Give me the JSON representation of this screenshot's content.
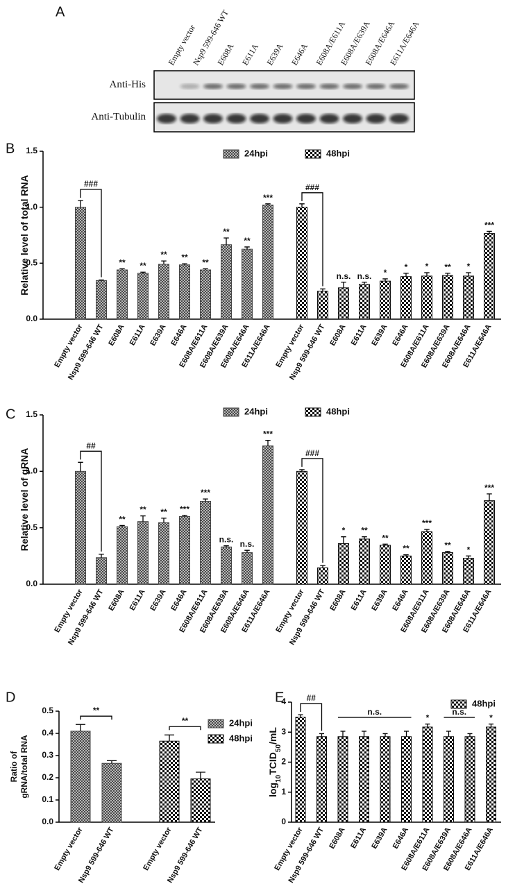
{
  "blot": {
    "panel": "A",
    "lanes": [
      "Empty vector",
      "Nsp9 599-646 WT",
      "E608A",
      "E611A",
      "E639A",
      "E646A",
      "E608A/E611A",
      "E608A/E639A",
      "E608A/E646A",
      "E611A/E646A"
    ],
    "rows": [
      "Anti-His",
      "Anti-Tubulin"
    ]
  },
  "chart_data": [
    {
      "type": "bar",
      "panel": "B",
      "ylabel": "Relative level of total RNA",
      "categories": [
        "Empty vector",
        "Nsp9 599-646 WT",
        "E608A",
        "E611A",
        "E639A",
        "E646A",
        "E608A/E611A",
        "E608A/E639A",
        "E608A/E646A",
        "E611A/E646A"
      ],
      "series": [
        {
          "name": "24hpi",
          "color": "#444444",
          "pattern": "crosshatch",
          "values": [
            1.0,
            0.345,
            0.44,
            0.41,
            0.49,
            0.485,
            0.44,
            0.665,
            0.625,
            1.02
          ],
          "errors": [
            0.06,
            0.005,
            0.01,
            0.01,
            0.03,
            0.01,
            0.01,
            0.06,
            0.02,
            0.01
          ],
          "annotations": [
            null,
            null,
            "**",
            "**",
            "**",
            "**",
            "**",
            "**",
            "**",
            "***"
          ]
        },
        {
          "name": "48hpi",
          "color": "#111111",
          "pattern": "checker",
          "values": [
            1.0,
            0.25,
            0.28,
            0.31,
            0.34,
            0.38,
            0.385,
            0.39,
            0.385,
            0.765
          ],
          "errors": [
            0.03,
            0.02,
            0.05,
            0.02,
            0.02,
            0.03,
            0.03,
            0.02,
            0.03,
            0.02
          ],
          "annotations": [
            null,
            null,
            "n.s.",
            "n.s.",
            "*",
            "*",
            "*",
            "**",
            "*",
            "***"
          ]
        }
      ],
      "brackets": [
        {
          "series": 0,
          "from": 0,
          "to": 1,
          "label": "###",
          "style": "hook"
        },
        {
          "series": 1,
          "from": 0,
          "to": 1,
          "label": "###",
          "style": "hook"
        }
      ],
      "ylim": [
        0,
        1.5
      ],
      "yticks": [
        {
          "value": 0,
          "label": "0.0"
        },
        0.5,
        {
          "value": 1,
          "label": "1.0"
        },
        1.5
      ]
    },
    {
      "type": "bar",
      "panel": "C",
      "ylabel": "Relative level of gRNA",
      "categories": [
        "Empty vector",
        "Nsp9 599-646 WT",
        "E608A",
        "E611A",
        "E639A",
        "E646A",
        "E608A/E611A",
        "E608A/E639A",
        "E608A/E646A",
        "E611A/E646A"
      ],
      "series": [
        {
          "name": "24hpi",
          "color": "#444444",
          "pattern": "crosshatch",
          "values": [
            1.0,
            0.235,
            0.51,
            0.555,
            0.545,
            0.6,
            0.735,
            0.33,
            0.28,
            1.225
          ],
          "errors": [
            0.08,
            0.03,
            0.01,
            0.05,
            0.04,
            0.01,
            0.02,
            0.01,
            0.02,
            0.05
          ],
          "annotations": [
            null,
            null,
            "**",
            "**",
            "**",
            "***",
            "***",
            "n.s.",
            "n.s.",
            "***"
          ]
        },
        {
          "name": "48hpi",
          "color": "#111111",
          "pattern": "checker",
          "values": [
            1.0,
            0.145,
            0.36,
            0.4,
            0.345,
            0.25,
            0.465,
            0.28,
            0.23,
            0.74
          ],
          "errors": [
            0.015,
            0.02,
            0.06,
            0.02,
            0.01,
            0.01,
            0.02,
            0.01,
            0.02,
            0.06
          ],
          "annotations": [
            null,
            null,
            "*",
            "**",
            "**",
            "**",
            "***",
            "**",
            "*",
            "***"
          ]
        }
      ],
      "brackets": [
        {
          "series": 0,
          "from": 0,
          "to": 1,
          "label": "##",
          "style": "hook"
        },
        {
          "series": 1,
          "from": 0,
          "to": 1,
          "label": "###",
          "style": "hook"
        }
      ],
      "ylim": [
        0,
        1.5
      ],
      "yticks": [
        {
          "value": 0,
          "label": "0.0"
        },
        0.5,
        {
          "value": 1,
          "label": "1.0"
        },
        1.5
      ]
    },
    {
      "type": "bar",
      "panel": "D",
      "ylabel_lines": [
        "Ratio of",
        "gRNA/total RNA"
      ],
      "categories": [
        "Empty vector",
        "Nsp9 599-646 WT"
      ],
      "series": [
        {
          "name": "24hpi",
          "color": "#444444",
          "pattern": "crosshatch",
          "values": [
            0.41,
            0.265
          ],
          "errors": [
            0.03,
            0.012
          ]
        },
        {
          "name": "48hpi",
          "color": "#111111",
          "pattern": "checker",
          "values": [
            0.365,
            0.195
          ],
          "errors": [
            0.028,
            0.03
          ]
        }
      ],
      "brackets": [
        {
          "series": 0,
          "from": 0,
          "to": 1,
          "label": "**",
          "style": "cap"
        },
        {
          "series": 1,
          "from": 0,
          "to": 1,
          "label": "**",
          "style": "cap"
        }
      ],
      "ylim": [
        0,
        0.5
      ],
      "yticks": [
        {
          "value": 0,
          "label": "0.0"
        },
        0.1,
        0.2,
        0.3,
        0.4,
        0.5
      ]
    },
    {
      "type": "bar",
      "panel": "E",
      "ylabel_parts": [
        "log",
        "10",
        "TCID",
        "50",
        "/mL"
      ],
      "categories": [
        "Empty vector",
        "Nsp9 599-646 WT",
        "E608A",
        "E611A",
        "E639A",
        "E646A",
        "E608A/E611A",
        "E608A/E639A",
        "E608A/E646A",
        "E611A/E646A"
      ],
      "series": [
        {
          "name": "48hpi",
          "color": "#111111",
          "pattern": "checker",
          "values": [
            3.5,
            2.85,
            2.85,
            2.85,
            2.85,
            2.85,
            3.17,
            2.85,
            2.85,
            3.17
          ],
          "errors": [
            0.08,
            0.1,
            0.18,
            0.18,
            0.1,
            0.18,
            0.1,
            0.18,
            0.1,
            0.1
          ],
          "annotations": [
            null,
            null,
            null,
            null,
            null,
            null,
            "*",
            null,
            null,
            "*"
          ]
        }
      ],
      "brackets": [
        {
          "series": 0,
          "from": 0,
          "to": 1,
          "label": "##",
          "style": "hook"
        },
        {
          "series": 0,
          "from": 2,
          "to": 5,
          "label": "n.s.",
          "style": "line"
        },
        {
          "series": 0,
          "from": 7,
          "to": 8,
          "label": "n.s.",
          "style": "line"
        }
      ],
      "ylim": [
        0,
        4
      ],
      "yticks": [
        0,
        1,
        2,
        3,
        4
      ]
    }
  ]
}
